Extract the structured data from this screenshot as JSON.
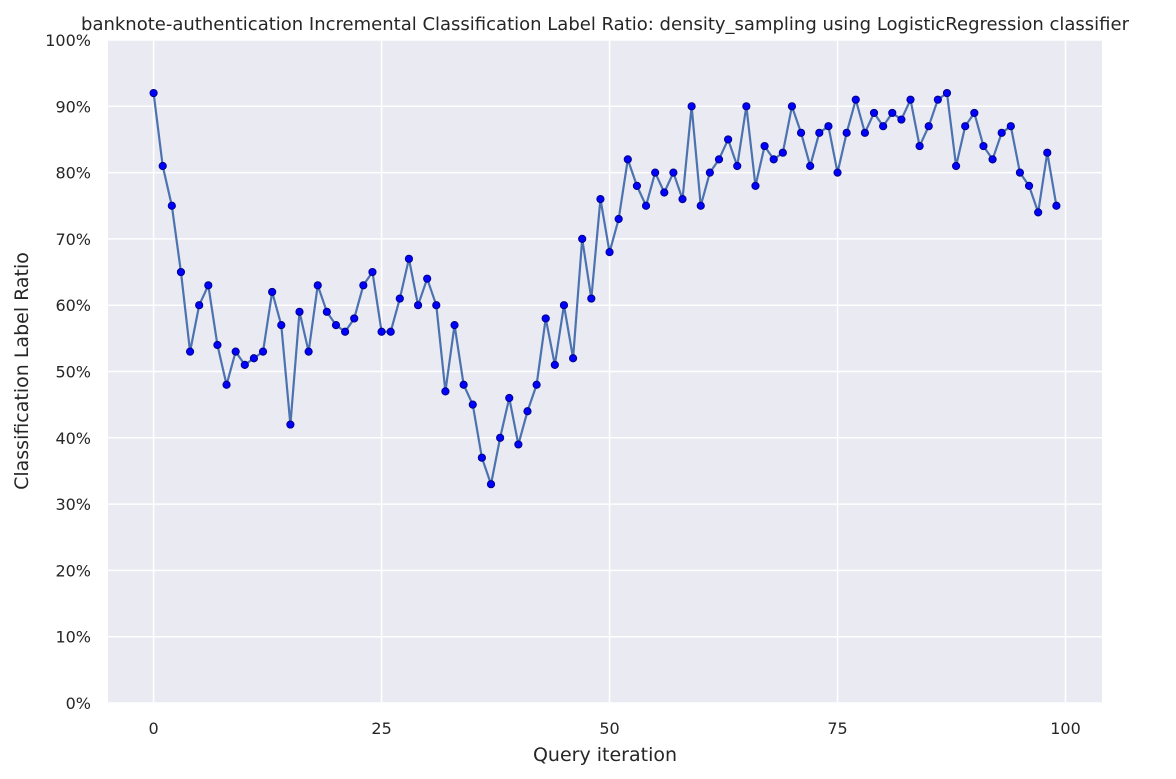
{
  "chart_data": {
    "type": "line",
    "title": "banknote-authentication Incremental Classification Label Ratio: density_sampling using LogisticRegression classifier",
    "xlabel": "Query iteration",
    "ylabel": "Classification Label Ratio",
    "xlim": [
      -5,
      104
    ],
    "ylim": [
      0,
      100
    ],
    "x_ticks": [
      0,
      25,
      50,
      75,
      100
    ],
    "y_ticks": [
      0,
      10,
      20,
      30,
      40,
      50,
      60,
      70,
      80,
      90,
      100
    ],
    "y_tick_labels": [
      "0%",
      "10%",
      "20%",
      "30%",
      "40%",
      "50%",
      "60%",
      "70%",
      "80%",
      "90%",
      "100%"
    ],
    "grid": true,
    "legend": "none",
    "colors": {
      "background": "#eaeaf2",
      "grid": "#ffffff",
      "line": "#4c72b0",
      "marker": "#0000ff",
      "marker_edge": "#00008b"
    },
    "series": [
      {
        "x": [
          0,
          1,
          2,
          3,
          4,
          5,
          6,
          7,
          8,
          9,
          10,
          11,
          12,
          13,
          14,
          15,
          16,
          17,
          18,
          19,
          20,
          21,
          22,
          23,
          24,
          25,
          26,
          27,
          28,
          29,
          30,
          31,
          32,
          33,
          34,
          35,
          36,
          37,
          38,
          39,
          40,
          41,
          42,
          43,
          44,
          45,
          46,
          47,
          48,
          49,
          50,
          51,
          52,
          53,
          54,
          55,
          56,
          57,
          58,
          59,
          60,
          61,
          62,
          63,
          64,
          65,
          66,
          67,
          68,
          69,
          70,
          71,
          72,
          73,
          74,
          75,
          76,
          77,
          78,
          79,
          80,
          81,
          82,
          83,
          84,
          85,
          86,
          87,
          88,
          89,
          90,
          91,
          92,
          93,
          94,
          95,
          96,
          97,
          98,
          99
        ],
        "y": [
          92,
          81,
          75,
          65,
          53,
          60,
          63,
          54,
          48,
          53,
          51,
          52,
          53,
          62,
          57,
          42,
          59,
          53,
          63,
          59,
          57,
          56,
          58,
          63,
          65,
          56,
          56,
          61,
          67,
          60,
          64,
          60,
          47,
          57,
          48,
          45,
          37,
          33,
          40,
          46,
          39,
          44,
          48,
          58,
          51,
          60,
          52,
          70,
          61,
          76,
          68,
          73,
          82,
          78,
          75,
          80,
          77,
          80,
          76,
          90,
          75,
          80,
          82,
          85,
          81,
          90,
          78,
          84,
          82,
          83,
          90,
          86,
          81,
          86,
          87,
          80,
          86,
          91,
          86,
          89,
          87,
          89,
          88,
          91,
          84,
          87,
          91,
          92,
          81,
          87,
          89,
          84,
          82,
          86,
          87,
          80,
          78,
          74,
          83,
          75
        ]
      }
    ]
  }
}
